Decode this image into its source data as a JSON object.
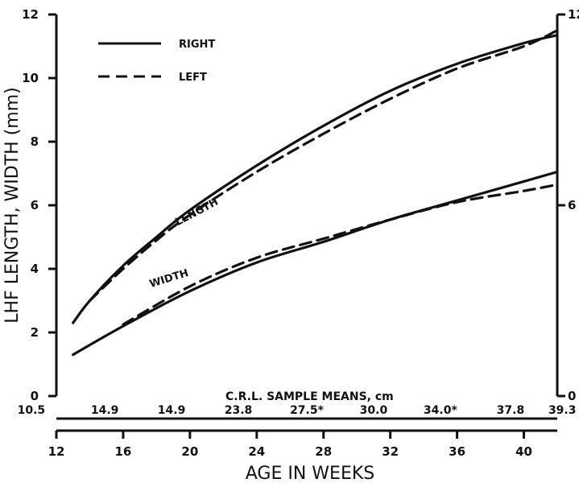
{
  "chart_data": {
    "type": "line",
    "xlabel": "AGE IN WEEKS",
    "ylabel": "LHF LENGTH, WIDTH (mm)",
    "xlim": [
      12,
      42
    ],
    "ylim": [
      0,
      12
    ],
    "x_ticks": [
      {
        "value": 12,
        "label": "12"
      },
      {
        "value": 16,
        "label": "16"
      },
      {
        "value": 20,
        "label": "20"
      },
      {
        "value": 24,
        "label": "24"
      },
      {
        "value": 28,
        "label": "28"
      },
      {
        "value": 32,
        "label": "32"
      },
      {
        "value": 36,
        "label": "36"
      },
      {
        "value": 40,
        "label": "40"
      }
    ],
    "y_ticks": [
      {
        "value": 0,
        "label": "0"
      },
      {
        "value": 2,
        "label": "2"
      },
      {
        "value": 4,
        "label": "4"
      },
      {
        "value": 6,
        "label": "6"
      },
      {
        "value": 8,
        "label": "8"
      },
      {
        "value": 10,
        "label": "10"
      },
      {
        "value": 12,
        "label": "12"
      }
    ],
    "y2_ticks": [
      {
        "value": 0,
        "label": "0"
      },
      {
        "value": 6,
        "label": "6"
      },
      {
        "value": 12,
        "label": "12"
      }
    ],
    "crl_title": "C.R.L. SAMPLE MEANS, cm",
    "crl_labels": [
      {
        "x": 10.5,
        "text": "10.5"
      },
      {
        "x": 14.9,
        "text": "14.9"
      },
      {
        "x": 18.9,
        "text": "14.9"
      },
      {
        "x": 22.9,
        "text": "23.8"
      },
      {
        "x": 27.0,
        "text": "27.5*"
      },
      {
        "x": 31.0,
        "text": "30.0"
      },
      {
        "x": 35.0,
        "text": "34.0*"
      },
      {
        "x": 39.2,
        "text": "37.8"
      },
      {
        "x": 42.3,
        "text": "39.3"
      }
    ],
    "legend": [
      {
        "label": "RIGHT",
        "style": "solid"
      },
      {
        "label": "LEFT",
        "style": "dashed"
      }
    ],
    "annotations": [
      {
        "text": "LENGTH",
        "x": 20.5,
        "y": 5.7,
        "angle": -28
      },
      {
        "text": "WIDTH",
        "x": 18.8,
        "y": 3.6,
        "angle": -17
      }
    ],
    "series": [
      {
        "name": "RIGHT",
        "group": "length",
        "style": "solid",
        "x": [
          13,
          14,
          16,
          18,
          20,
          24,
          28,
          32,
          36,
          40,
          42
        ],
        "y": [
          2.3,
          3.0,
          4.1,
          5.0,
          5.85,
          7.25,
          8.5,
          9.6,
          10.45,
          11.1,
          11.35
        ]
      },
      {
        "name": "LEFT",
        "group": "length",
        "style": "dashed",
        "x": [
          14,
          16,
          18,
          20,
          24,
          28,
          32,
          36,
          40,
          42
        ],
        "y": [
          3.0,
          4.0,
          4.9,
          5.7,
          7.05,
          8.25,
          9.35,
          10.3,
          11.0,
          11.5
        ]
      },
      {
        "name": "RIGHT",
        "group": "width",
        "style": "solid",
        "x": [
          13,
          16,
          20,
          24,
          28,
          32,
          36,
          40,
          42
        ],
        "y": [
          1.3,
          2.2,
          3.3,
          4.2,
          4.85,
          5.55,
          6.15,
          6.75,
          7.05
        ]
      },
      {
        "name": "LEFT",
        "group": "width",
        "style": "dashed",
        "x": [
          16,
          20,
          24,
          28,
          32,
          36,
          40,
          42
        ],
        "y": [
          2.25,
          3.45,
          4.35,
          4.95,
          5.55,
          6.1,
          6.45,
          6.65
        ]
      }
    ]
  }
}
